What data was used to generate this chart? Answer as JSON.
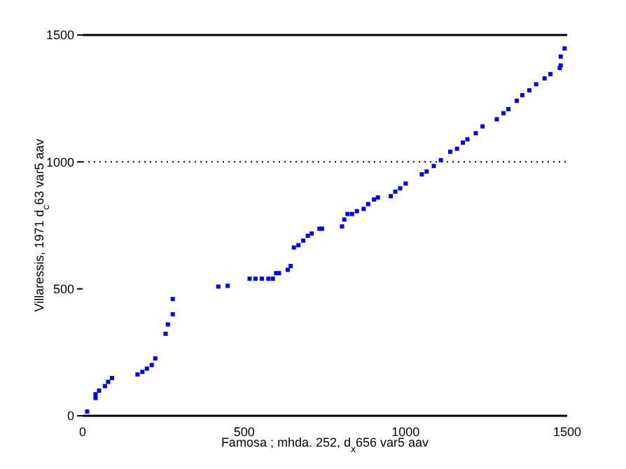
{
  "chart_data": {
    "type": "scatter",
    "xlabel": "Famosa ; mhda. 252, d$_{x}$656 var5 aav",
    "ylabel": "Villaressis, 1971 d$_{c}$63 var5 aav",
    "xlim": [
      0,
      1500
    ],
    "xticks": [
      0,
      500,
      1000,
      1500
    ],
    "ylim": [
      0,
      1500
    ],
    "yticks": [
      0,
      500,
      1000,
      1500
    ],
    "marker": "square",
    "ref_lines": [
      {
        "axis": "y",
        "value": 1000,
        "color": "#000000",
        "line_style": "dotted"
      }
    ],
    "series": [
      {
        "color": "#0000ff",
        "x": [
          14,
          40,
          40,
          51,
          69,
          79,
          91,
          170,
          185,
          199,
          214,
          225,
          257,
          264,
          279,
          279,
          420,
          449,
          517,
          535,
          555,
          575,
          589,
          599,
          608,
          635,
          644,
          654,
          668,
          683,
          697,
          709,
          733,
          741,
          803,
          810,
          820,
          834,
          849,
          870,
          884,
          902,
          914,
          954,
          968,
          983,
          1000,
          1050,
          1065,
          1087,
          1109,
          1138,
          1159,
          1177,
          1191,
          1217,
          1238,
          1282,
          1303,
          1318,
          1344,
          1361,
          1383,
          1404,
          1430,
          1448,
          1477,
          1480,
          1480,
          1492
        ],
        "values": [
          17,
          70,
          85,
          99,
          117,
          134,
          149,
          163,
          173,
          186,
          200,
          226,
          323,
          360,
          400,
          460,
          509,
          512,
          540,
          540,
          540,
          540,
          540,
          562,
          562,
          575,
          590,
          663,
          672,
          690,
          709,
          718,
          737,
          737,
          746,
          773,
          795,
          795,
          806,
          815,
          834,
          852,
          860,
          865,
          883,
          896,
          915,
          951,
          962,
          984,
          1007,
          1040,
          1052,
          1076,
          1089,
          1113,
          1140,
          1168,
          1192,
          1208,
          1241,
          1263,
          1282,
          1306,
          1329,
          1346,
          1370,
          1380,
          1415,
          1447
        ]
      }
    ]
  }
}
